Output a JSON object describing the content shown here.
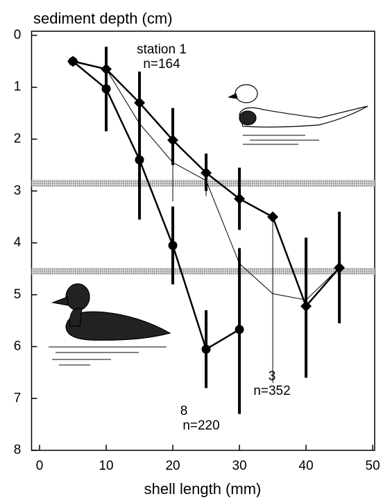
{
  "chart_data": {
    "type": "line",
    "ylabel": "sediment depth (cm)",
    "xlabel": "shell length (mm)",
    "xlim": [
      -1.2,
      50.3
    ],
    "xticks": [
      0,
      10,
      20,
      30,
      40,
      50
    ],
    "ylim": [
      -0.08,
      8
    ],
    "yticks": [
      0,
      1,
      2,
      3,
      4,
      5,
      6,
      7,
      8
    ],
    "bands": [
      2.85,
      4.55
    ],
    "series": [
      {
        "name": "station 1",
        "n_label": "n=164",
        "marker": "diamond",
        "width": 2.5,
        "x": [
          5,
          10,
          15,
          20,
          25,
          30,
          35,
          40,
          45
        ],
        "values": [
          0.5,
          0.65,
          1.3,
          2.02,
          2.65,
          3.15,
          3.5,
          5.22,
          4.48
        ],
        "errors": [
          null,
          null,
          null,
          [
            1.4,
            2.5
          ],
          [
            2.28,
            3.0
          ],
          [
            2.55,
            3.75
          ],
          null,
          [
            3.9,
            6.6
          ],
          [
            3.4,
            5.55
          ]
        ]
      },
      {
        "name": "8",
        "n_label": "n=220",
        "marker": "circle",
        "width": 2.5,
        "x": [
          5,
          10,
          15,
          20,
          25,
          30
        ],
        "values": [
          0.5,
          1.03,
          2.4,
          4.05,
          6.05,
          5.67
        ],
        "errors": [
          null,
          [
            0.22,
            1.85
          ],
          [
            0.7,
            3.55
          ],
          [
            3.3,
            4.8
          ],
          [
            5.3,
            6.8
          ],
          [
            4.1,
            7.3
          ]
        ]
      },
      {
        "name": "3",
        "n_label": "n=352",
        "marker": "none",
        "width": 1,
        "x": [
          5,
          10,
          15,
          20,
          25,
          30,
          35,
          40,
          45
        ],
        "values": [
          0.5,
          0.65,
          1.7,
          2.45,
          2.8,
          4.4,
          4.98,
          5.1,
          4.48
        ],
        "errors": [
          null,
          null,
          null,
          [
            2.4,
            3.2
          ],
          [
            2.6,
            3.1
          ],
          null,
          [
            3.5,
            6.7
          ],
          [
            4.35,
            6.4
          ],
          null
        ]
      }
    ]
  }
}
